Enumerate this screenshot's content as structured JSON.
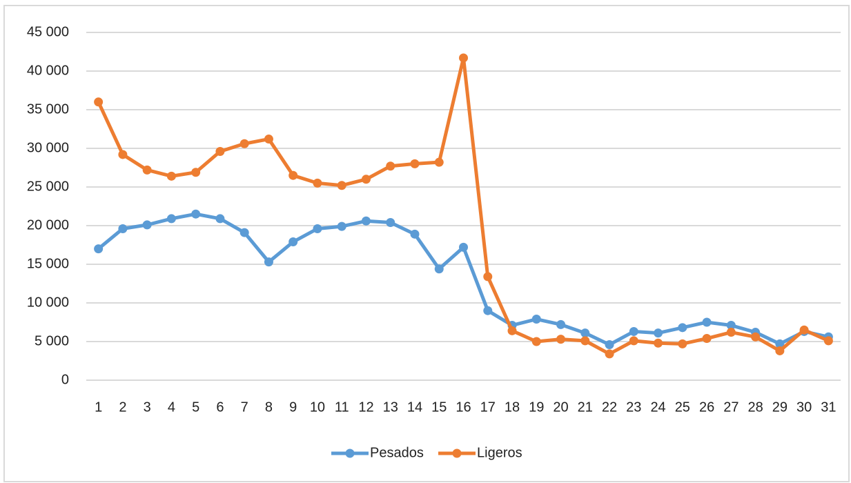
{
  "chart_data": {
    "type": "line",
    "categories": [
      "1",
      "2",
      "3",
      "4",
      "5",
      "6",
      "7",
      "8",
      "9",
      "10",
      "11",
      "12",
      "13",
      "14",
      "15",
      "16",
      "17",
      "18",
      "19",
      "20",
      "21",
      "22",
      "23",
      "24",
      "25",
      "26",
      "27",
      "28",
      "29",
      "30",
      "31"
    ],
    "series": [
      {
        "name": "Pesados",
        "color": "#5b9bd5",
        "values": [
          17000,
          19600,
          20100,
          20900,
          21500,
          20900,
          19100,
          15300,
          17900,
          19600,
          19900,
          20600,
          20400,
          18900,
          14400,
          17200,
          9000,
          7100,
          7900,
          7200,
          6100,
          4600,
          6300,
          6100,
          6800,
          7500,
          7100,
          6200,
          4700,
          6300,
          5600
        ]
      },
      {
        "name": "Ligeros",
        "color": "#ed7d31",
        "values": [
          36000,
          29200,
          27200,
          26400,
          26900,
          29600,
          30600,
          31200,
          26500,
          25500,
          25200,
          26000,
          27700,
          28000,
          28200,
          41700,
          13400,
          6400,
          5000,
          5300,
          5100,
          3400,
          5100,
          4800,
          4700,
          5400,
          6200,
          5600,
          3800,
          6500,
          5100
        ]
      }
    ],
    "ylim": [
      0,
      45000
    ],
    "yticks": [
      0,
      {
        "value": 5000,
        "label": "5 000"
      },
      {
        "value": 10000,
        "label": "10 000"
      },
      {
        "value": 15000,
        "label": "15 000"
      },
      {
        "value": 20000,
        "label": "20 000"
      },
      {
        "value": 25000,
        "label": "25 000"
      },
      {
        "value": 30000,
        "label": "30 000"
      },
      {
        "value": 35000,
        "label": "35 000"
      },
      {
        "value": 40000,
        "label": "40 000"
      },
      {
        "value": 45000,
        "label": "45 000"
      }
    ],
    "grid": true,
    "legend": "bottom"
  }
}
